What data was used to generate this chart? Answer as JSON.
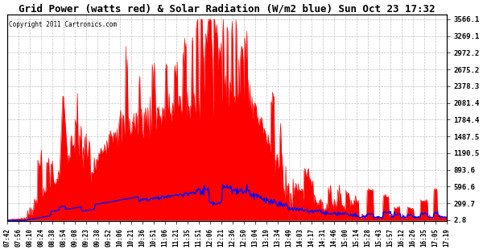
{
  "title": "Grid Power (watts red) & Solar Radiation (W/m2 blue) Sun Oct 23 17:32",
  "copyright": "Copyright 2011 Cartronics.com",
  "yticks": [
    2.8,
    299.7,
    596.6,
    893.6,
    1190.5,
    1487.5,
    1784.4,
    2081.4,
    2378.3,
    2675.2,
    2972.2,
    3269.1,
    3566.1
  ],
  "ymin": 2.8,
  "ymax": 3566.1,
  "background_color": "#ffffff",
  "grid_color": "#bbbbbb",
  "red_fill_color": "red",
  "blue_line_color": "blue",
  "solar_scale": 4.0,
  "x_labels": [
    "07:42",
    "07:56",
    "08:10",
    "08:24",
    "08:38",
    "08:54",
    "09:08",
    "09:23",
    "09:38",
    "09:52",
    "10:06",
    "10:21",
    "10:36",
    "10:51",
    "11:06",
    "11:21",
    "11:35",
    "11:51",
    "12:06",
    "12:21",
    "12:36",
    "12:50",
    "13:04",
    "13:19",
    "13:34",
    "13:49",
    "14:03",
    "14:17",
    "14:31",
    "14:46",
    "15:00",
    "15:14",
    "15:28",
    "15:43",
    "15:57",
    "16:12",
    "16:26",
    "16:35",
    "17:05",
    "17:19"
  ]
}
